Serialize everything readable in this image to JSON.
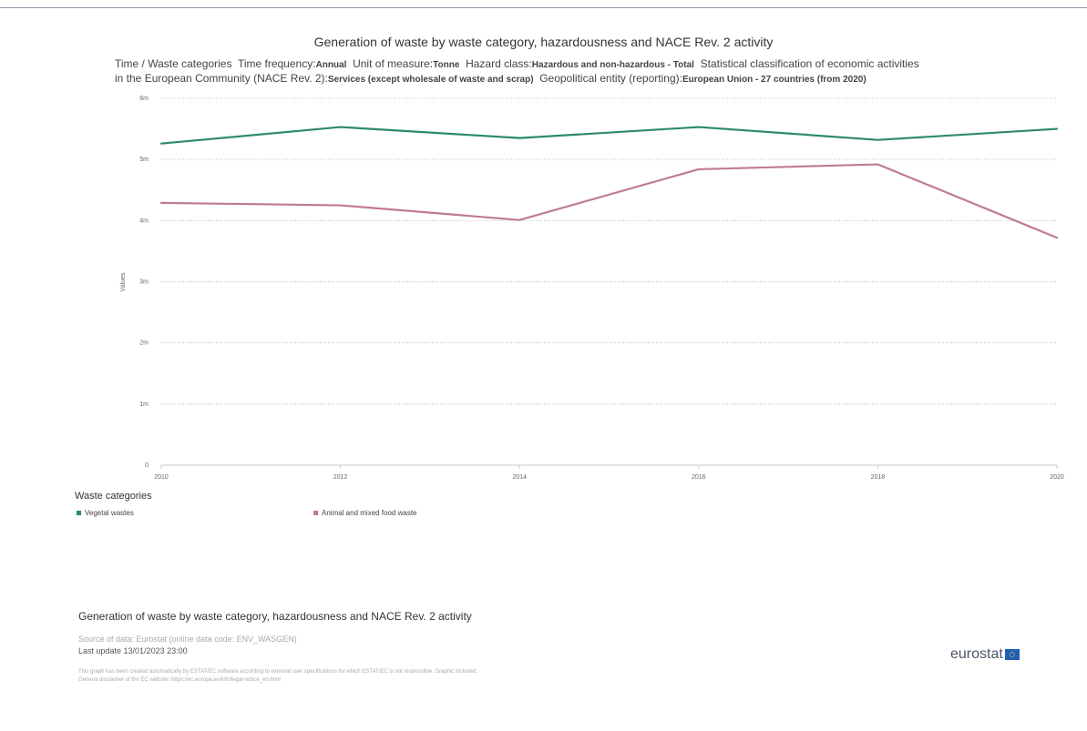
{
  "header": {
    "title": "Generation of waste by waste category, hazardousness and NACE Rev. 2 activity",
    "subtitle": {
      "time_label": "Time / Waste categories",
      "freq_label": "Time frequency:",
      "freq_value": "Annual",
      "unit_label": "Unit of measure:",
      "unit_value": "Tonne",
      "hazard_label": "Hazard class:",
      "hazard_value": "Hazardous and non-hazardous - Total",
      "nace_label_1": "Statistical classification of economic activities",
      "nace_label_2": "in the European Community (NACE Rev. 2):",
      "nace_value": "Services (except wholesale of waste and scrap)",
      "geo_label": "Geopolitical entity (reporting):",
      "geo_value": "European Union - 27 countries (from 2020)"
    }
  },
  "chart_data": {
    "type": "line",
    "x": [
      2010,
      2012,
      2014,
      2016,
      2018,
      2020
    ],
    "xlabel": "",
    "ylabel": "Values",
    "ylim": [
      0,
      6000000
    ],
    "yticks": [
      0,
      1000000,
      2000000,
      3000000,
      4000000,
      5000000,
      6000000
    ],
    "ytick_labels": [
      "0",
      "1m",
      "2m",
      "3m",
      "4m",
      "5m",
      "6m"
    ],
    "xtick_labels": [
      "2010",
      "2012",
      "2014",
      "2016",
      "2018",
      "2020"
    ],
    "grid": true,
    "legend_title": "Waste categories",
    "legend_position": "bottom-left",
    "series": [
      {
        "name": "Vegetal wastes",
        "color": "#2e8b6a",
        "values": [
          5260000,
          5530000,
          5350000,
          5530000,
          5320000,
          5500000
        ]
      },
      {
        "name": "Animal and mixed food waste",
        "color": "#c07a93",
        "values": [
          4290000,
          4250000,
          4010000,
          4840000,
          4920000,
          3720000
        ]
      }
    ]
  },
  "footer": {
    "title": "Generation of waste by waste category, hazardousness and NACE Rev. 2 activity",
    "source": "Source of data: Eurostat (online data code: ENV_WASGEN)",
    "last_update": "Last update 13/01/2023 23:00",
    "disclaimer_1": "This graph has been created automatically by ESTAT/EC software according to external user specifications for which ESTAT/EC is not responsible. Graphic included.",
    "disclaimer_2": "General disclaimer of the EC website: https://ec.europa.eu/info/legal-notice_en.html",
    "logo_text": "eurostat"
  }
}
